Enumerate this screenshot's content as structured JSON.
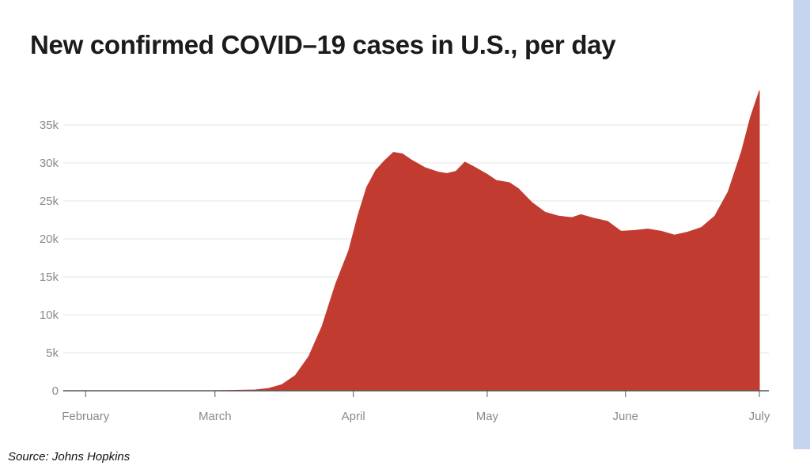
{
  "source_note": "Source: Johns Hopkins",
  "colors": {
    "area": "#c23b30",
    "grid": "#e6e6e6",
    "axis": "#555555",
    "text": "#8a8a8a",
    "accent_bar": "#c6d4ef"
  },
  "chart_data": {
    "type": "area",
    "title": "New confirmed COVID–19 cases in U.S., per day",
    "xlabel": "",
    "ylabel": "",
    "x_type": "date",
    "x_ticks": [
      {
        "date": "2020-02-01",
        "label": "February"
      },
      {
        "date": "2020-03-01",
        "label": "March"
      },
      {
        "date": "2020-04-01",
        "label": "April"
      },
      {
        "date": "2020-05-01",
        "label": "May"
      },
      {
        "date": "2020-06-01",
        "label": "June"
      },
      {
        "date": "2020-07-01",
        "label": "July"
      }
    ],
    "y_ticks": [
      {
        "value": 0,
        "label": "0"
      },
      {
        "value": 5000,
        "label": "5k"
      },
      {
        "value": 10000,
        "label": "10k"
      },
      {
        "value": 15000,
        "label": "15k"
      },
      {
        "value": 20000,
        "label": "20k"
      },
      {
        "value": 25000,
        "label": "25k"
      },
      {
        "value": 30000,
        "label": "30k"
      },
      {
        "value": 35000,
        "label": "35k"
      }
    ],
    "xlim": [
      "2020-01-27",
      "2020-07-01"
    ],
    "ylim": [
      0,
      40000
    ],
    "grid": true,
    "series": [
      {
        "values": [
          [
            "2020-01-27",
            0
          ],
          [
            "2020-02-15",
            0
          ],
          [
            "2020-03-01",
            0
          ],
          [
            "2020-03-10",
            100
          ],
          [
            "2020-03-13",
            300
          ],
          [
            "2020-03-16",
            800
          ],
          [
            "2020-03-19",
            2000
          ],
          [
            "2020-03-22",
            4500
          ],
          [
            "2020-03-25",
            8500
          ],
          [
            "2020-03-28",
            14000
          ],
          [
            "2020-03-31",
            18500
          ],
          [
            "2020-04-02",
            23000
          ],
          [
            "2020-04-04",
            26800
          ],
          [
            "2020-04-06",
            29000
          ],
          [
            "2020-04-08",
            30300
          ],
          [
            "2020-04-10",
            31400
          ],
          [
            "2020-04-12",
            31200
          ],
          [
            "2020-04-14",
            30400
          ],
          [
            "2020-04-17",
            29400
          ],
          [
            "2020-04-20",
            28800
          ],
          [
            "2020-04-22",
            28600
          ],
          [
            "2020-04-24",
            28900
          ],
          [
            "2020-04-26",
            30100
          ],
          [
            "2020-04-28",
            29500
          ],
          [
            "2020-05-01",
            28500
          ],
          [
            "2020-05-03",
            27700
          ],
          [
            "2020-05-06",
            27400
          ],
          [
            "2020-05-08",
            26600
          ],
          [
            "2020-05-11",
            24800
          ],
          [
            "2020-05-14",
            23500
          ],
          [
            "2020-05-17",
            23000
          ],
          [
            "2020-05-20",
            22800
          ],
          [
            "2020-05-22",
            23200
          ],
          [
            "2020-05-25",
            22700
          ],
          [
            "2020-05-28",
            22300
          ],
          [
            "2020-05-31",
            21000
          ],
          [
            "2020-06-03",
            21100
          ],
          [
            "2020-06-06",
            21300
          ],
          [
            "2020-06-09",
            21000
          ],
          [
            "2020-06-12",
            20500
          ],
          [
            "2020-06-15",
            20900
          ],
          [
            "2020-06-18",
            21500
          ],
          [
            "2020-06-21",
            23000
          ],
          [
            "2020-06-24",
            26200
          ],
          [
            "2020-06-27",
            31500
          ],
          [
            "2020-06-29",
            36000
          ],
          [
            "2020-07-01",
            39500
          ]
        ]
      }
    ]
  }
}
